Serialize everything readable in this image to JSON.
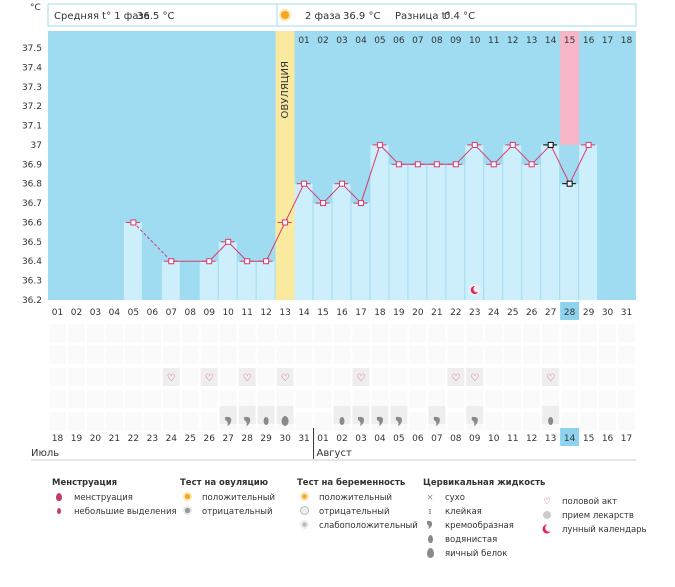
{
  "chart_data": {
    "type": "line",
    "y_unit": "°C",
    "ylim": [
      36.2,
      37.5
    ],
    "y_ticks": [
      "37.5",
      "37.4",
      "37.3",
      "37.2",
      "37.1",
      "37",
      "36.9",
      "36.8",
      "36.7",
      "36.6",
      "36.5",
      "36.4",
      "36.3",
      "36.2"
    ],
    "cycle_days": [
      "01",
      "02",
      "03",
      "04",
      "05",
      "06",
      "07",
      "08",
      "09",
      "10",
      "11",
      "12",
      "13",
      "14",
      "15",
      "16",
      "17",
      "18",
      "01",
      "02",
      "03",
      "04",
      "05",
      "06",
      "07",
      "08",
      "09",
      "10",
      "11",
      "12",
      "13",
      "14",
      "15",
      "16",
      "17",
      "18"
    ],
    "dates": [
      "18",
      "19",
      "20",
      "21",
      "22",
      "23",
      "24",
      "25",
      "26",
      "27",
      "28",
      "29",
      "30",
      "31",
      "01",
      "02",
      "03",
      "04",
      "05",
      "06",
      "07",
      "08",
      "09",
      "10",
      "11",
      "12",
      "13",
      "14",
      "15",
      "16",
      "17"
    ],
    "weekend_dates": [
      2,
      3,
      9,
      10,
      16,
      17,
      23,
      24,
      30
    ],
    "months": [
      {
        "name": "Июль",
        "start": 0
      },
      {
        "name": "Август",
        "start": 14
      }
    ],
    "header": {
      "phase1_label": "Средняя t° 1 фаза",
      "phase1_value": "36.5 °С",
      "phase2_label": "2 фаза",
      "phase2_value": "36.9 °С",
      "diff_label": "Разница t°",
      "diff_value": "0.4 °С"
    },
    "ovulation_label": "ОВУЛЯЦИЯ",
    "ovulation_day": 13,
    "cover_line": 36.6,
    "today_day": 28,
    "today_top_day": 15,
    "temperatures": [
      null,
      null,
      null,
      null,
      36.6,
      null,
      36.4,
      null,
      36.4,
      36.5,
      36.4,
      36.4,
      36.6,
      36.8,
      36.7,
      36.8,
      36.7,
      37.0,
      36.9,
      36.9,
      36.9,
      36.9,
      37.0,
      36.9,
      37.0,
      36.9,
      37.0,
      36.8,
      37.0,
      null,
      null
    ],
    "dashed_segments": [
      [
        5,
        7
      ]
    ],
    "black_markers": [
      27,
      28
    ],
    "intercourse_days": [
      7,
      9,
      11,
      13,
      17,
      22,
      23,
      27
    ],
    "moon_days": [
      23
    ],
    "fluid_marks": [
      {
        "day": 10,
        "kind": "creamy"
      },
      {
        "day": 11,
        "kind": "creamy"
      },
      {
        "day": 12,
        "kind": "watery"
      },
      {
        "day": 13,
        "kind": "egg"
      },
      {
        "day": 16,
        "kind": "watery"
      },
      {
        "day": 17,
        "kind": "creamy"
      },
      {
        "day": 18,
        "kind": "creamy"
      },
      {
        "day": 19,
        "kind": "creamy"
      },
      {
        "day": 21,
        "kind": "creamy"
      },
      {
        "day": 23,
        "kind": "creamy"
      },
      {
        "day": 27,
        "kind": "watery"
      }
    ]
  },
  "legend": {
    "menstruation": {
      "title": "Менструация",
      "items": [
        "менструация",
        "небольшие выделения"
      ]
    },
    "ovulation_test": {
      "title": "Тест на овуляцию",
      "items": [
        "положительный",
        "отрицательный"
      ]
    },
    "pregnancy_test": {
      "title": "Тест на беременность",
      "items": [
        "положительный",
        "отрицательный",
        "слабоположительный"
      ]
    },
    "cervical_fluid": {
      "title": "Цервикальная жидкость",
      "items": [
        "сухо",
        "клейкая",
        "кремообразная",
        "водянистая",
        "яичный белок"
      ]
    },
    "other": {
      "items": [
        "половой акт",
        "прием лекарств",
        "лунный календарь"
      ]
    }
  },
  "colors": {
    "plot_bg": "#9fdcf2",
    "bar": "#cdeefb",
    "line": "#d93a6d",
    "ovulation": "#faeaa0",
    "today": "#f7b6c8",
    "today_cell": "#8dd3ee",
    "weekend": "#d81b60"
  }
}
